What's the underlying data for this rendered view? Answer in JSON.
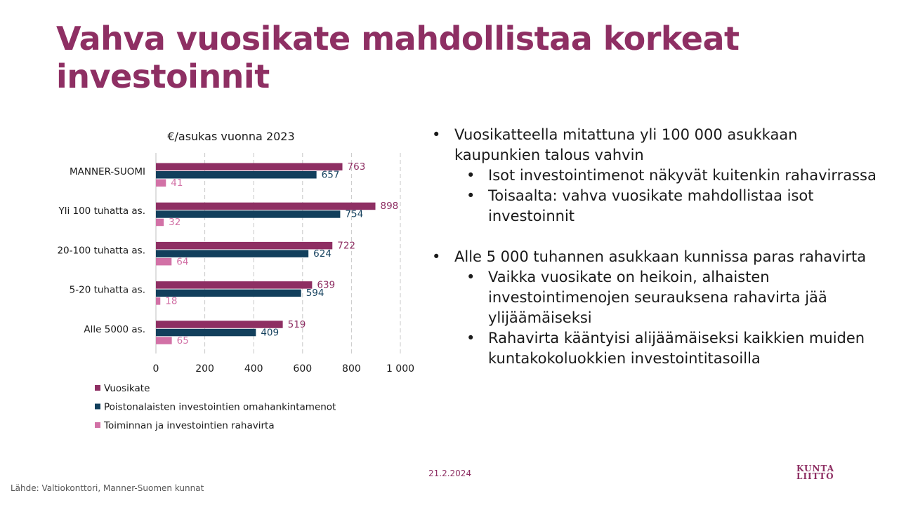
{
  "slide": {
    "title": "Vahva vuosikate mahdollistaa korkeat investoinnit",
    "date": "21.2.2024",
    "source": "Lähde: Valtiokonttori,  Manner-Suomen  kunnat",
    "logo": {
      "line1": "KUNTA",
      "line2": "LIITTO"
    }
  },
  "chart_data": {
    "type": "bar",
    "orientation": "horizontal",
    "title": "€/asukas vuonna 2023",
    "categories": [
      "MANNER-SUOMI",
      "Yli 100 tuhatta as.",
      "20-100 tuhatta as.",
      "5-20 tuhatta as.",
      "Alle 5000 as."
    ],
    "series": [
      {
        "name": "Vuosikate",
        "values": [
          763,
          898,
          722,
          639,
          519
        ],
        "color": "#8e2f63"
      },
      {
        "name": "Poistonalaisten investointien omahankintamenot",
        "values": [
          657,
          754,
          624,
          594,
          409
        ],
        "color": "#123f5c"
      },
      {
        "name": "Toiminnan ja investointien rahavirta",
        "values": [
          41,
          32,
          64,
          18,
          65
        ],
        "color": "#d271a6"
      }
    ],
    "xlim": [
      0,
      1000
    ],
    "xticks": [
      0,
      200,
      400,
      600,
      800,
      1000
    ],
    "xtick_labels": [
      "0",
      "200",
      "400",
      "600",
      "800",
      "1 000"
    ],
    "grid": "vertical-dashed",
    "legend_position": "bottom"
  },
  "bullets": [
    {
      "text": "Vuosikatteella mitattuna yli 100 000 asukkaan kaupunkien talous vahvin",
      "sub": [
        "Isot investointimenot näkyvät kuitenkin rahavirrassa",
        "Toisaalta: vahva vuosikate mahdollistaa isot investoinnit"
      ]
    },
    {
      "text": "Alle 5 000 tuhannen asukkaan kunnissa paras rahavirta",
      "sub": [
        "Vaikka vuosikate on heikoin, alhaisten investointimenojen seurauksena rahavirta jää ylijäämäiseksi",
        "Rahavirta kääntyisi alijäämäiseksi kaikkien muiden kuntakokoluokkien investointitasoilla"
      ]
    }
  ]
}
